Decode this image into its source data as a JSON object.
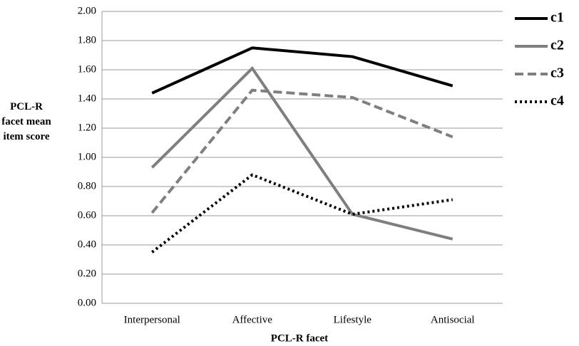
{
  "chart_data": {
    "type": "line",
    "x_label": "PCL-R facet",
    "y_label": "PCL-R facet mean item score",
    "categories": [
      "Interpersonal",
      "Affective",
      "Lifestyle",
      "Antisocial"
    ],
    "series": [
      {
        "name": "c1",
        "color": "#000000",
        "dash": "solid",
        "values": [
          1.44,
          1.75,
          1.69,
          1.49
        ]
      },
      {
        "name": "c2",
        "color": "#7f7f7f",
        "dash": "solid",
        "values": [
          0.93,
          1.61,
          0.61,
          0.44
        ]
      },
      {
        "name": "c3",
        "color": "#7f7f7f",
        "dash": "dashed",
        "values": [
          0.62,
          1.46,
          1.41,
          1.14
        ]
      },
      {
        "name": "c4",
        "color": "#000000",
        "dash": "dotted",
        "values": [
          0.35,
          0.88,
          0.61,
          0.71
        ]
      }
    ],
    "ylim": [
      0,
      2
    ],
    "yticks": [
      {
        "value": 0,
        "label": "0.00"
      },
      {
        "value": 0.2,
        "label": "0.20"
      },
      {
        "value": 0.4,
        "label": "0.40"
      },
      {
        "value": 0.6,
        "label": "0.60"
      },
      {
        "value": 0.8,
        "label": "0.80"
      },
      {
        "value": 1,
        "label": "1.00"
      },
      {
        "value": 1.2,
        "label": "1.20"
      },
      {
        "value": 1.4,
        "label": "1.40"
      },
      {
        "value": 1.6,
        "label": "1.60"
      },
      {
        "value": 1.8,
        "label": "1.80"
      },
      {
        "value": 2,
        "label": "2.00"
      }
    ],
    "grid": true,
    "legend": "right"
  }
}
